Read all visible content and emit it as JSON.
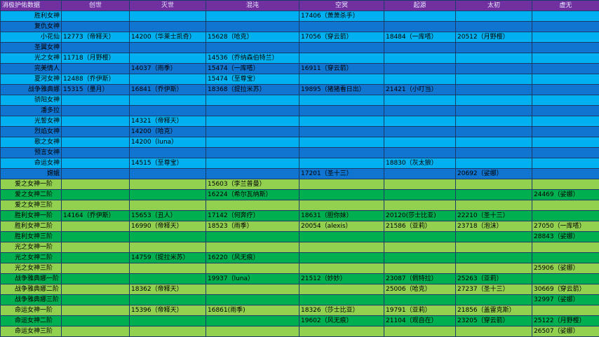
{
  "headers": [
    "消极护佑数据",
    "创世",
    "灭世",
    "混沌",
    "空冥",
    "起源",
    "太初",
    "虚无"
  ],
  "rows": [
    {
      "style": "cyan",
      "align": "right",
      "cells": [
        "胜利女神",
        "",
        "",
        "",
        "17406（萧萧杀手）",
        "",
        "",
        ""
      ]
    },
    {
      "style": "blue",
      "align": "right",
      "cells": [
        "复仇女神",
        "",
        "",
        "",
        "",
        "",
        "",
        ""
      ]
    },
    {
      "style": "cyan",
      "align": "right",
      "cells": [
        "小花仙",
        "12773（帝释天）",
        "14200（华莱士凯奇）",
        "15628（哈克）",
        "17056（穿云箭）",
        "18484（一库嗒）",
        "20512（月野樱）",
        ""
      ]
    },
    {
      "style": "blue",
      "align": "right",
      "cells": [
        "圣翼女神",
        "",
        "",
        "",
        "",
        "",
        "",
        ""
      ]
    },
    {
      "style": "cyan",
      "align": "right",
      "cells": [
        "光之女神",
        "11718（月野樱）",
        "",
        "14536（乔纳森伯特兰）",
        "",
        "",
        "",
        ""
      ]
    },
    {
      "style": "blue",
      "align": "right",
      "cells": [
        "完美情人",
        "",
        "14037（雨季）",
        "15474（一库嗒）",
        "16911（穿云箭）",
        "",
        "",
        ""
      ]
    },
    {
      "style": "cyan",
      "align": "right",
      "cells": [
        "夏河女神",
        "12488（乔伊斯）",
        "",
        "15474（至尊宝）",
        "",
        "",
        "",
        ""
      ]
    },
    {
      "style": "blue",
      "align": "right",
      "cells": [
        "战争雅典娜",
        "15315（墨月）",
        "16841（乔伊斯）",
        "18368（提拉米苏）",
        "19895（猪猪看日出）",
        "21421（小叮当）",
        "",
        ""
      ]
    },
    {
      "style": "cyan",
      "align": "right",
      "cells": [
        "骄阳女神",
        "",
        "",
        "",
        "",
        "",
        "",
        ""
      ]
    },
    {
      "style": "blue",
      "align": "right",
      "cells": [
        "潘多拉",
        "",
        "",
        "",
        "",
        "",
        "",
        ""
      ]
    },
    {
      "style": "cyan",
      "align": "right",
      "cells": [
        "光誓女神",
        "",
        "14321（帝释天）",
        "",
        "",
        "",
        "",
        ""
      ]
    },
    {
      "style": "blue",
      "align": "right",
      "cells": [
        "烈焰女神",
        "",
        "14200（哈克）",
        "",
        "",
        "",
        "",
        ""
      ]
    },
    {
      "style": "cyan",
      "align": "right",
      "cells": [
        "歌之女神",
        "",
        "14200（luna）",
        "",
        "",
        "",
        "",
        ""
      ]
    },
    {
      "style": "blue",
      "align": "right",
      "cells": [
        "预言女神",
        "",
        "",
        "",
        "",
        "",
        "",
        ""
      ]
    },
    {
      "style": "cyan",
      "align": "right",
      "cells": [
        "命运女神",
        "",
        "14515（至尊宝）",
        "",
        "",
        "18830（灰太狼）",
        "",
        ""
      ]
    },
    {
      "style": "blue",
      "align": "right",
      "cells": [
        "嫦娥",
        "",
        "",
        "",
        "17201（圣十三）",
        "",
        "20692（娑娜）",
        ""
      ]
    },
    {
      "style": "lime",
      "align": "left",
      "cells": [
        "爱之女神一阶",
        "",
        "",
        "15603（李兰普曼）",
        "",
        "",
        "",
        ""
      ]
    },
    {
      "style": "green",
      "align": "left",
      "cells": [
        "爱之女神二阶",
        "",
        "",
        "16224（希尔瓦纳斯）",
        "",
        "",
        "",
        "24469（娑娜）"
      ]
    },
    {
      "style": "lime",
      "align": "left",
      "cells": [
        "爱之女神三阶",
        "",
        "",
        "",
        "",
        "",
        "",
        ""
      ]
    },
    {
      "style": "green",
      "align": "left",
      "cells": [
        "胜利女神一阶",
        "14164（乔伊斯）",
        "15653（丑人）",
        "17142（何奔疗）",
        "18631（胆你妹）",
        "20120(莎士比亚)",
        "22210（圣十三）",
        ""
      ]
    },
    {
      "style": "lime",
      "align": "left",
      "cells": [
        "胜利女神二阶",
        "",
        "16990（帝释天）",
        "18523（雨季）",
        "20054（alexis）",
        "21586（亚莉）",
        "23718（泡沫）",
        "27050（一库嗒）"
      ]
    },
    {
      "style": "green",
      "align": "left",
      "cells": [
        "胜利女神三阶",
        "",
        "",
        "",
        "",
        "",
        "",
        "28843（娑娜）"
      ]
    },
    {
      "style": "lime",
      "align": "left",
      "cells": [
        "光之女神一阶",
        "",
        "",
        "",
        "",
        "",
        "",
        ""
      ]
    },
    {
      "style": "green",
      "align": "left",
      "cells": [
        "光之女神二阶",
        "",
        "14759（提拉米苏）",
        "16220（风无痕）",
        "",
        "",
        "",
        ""
      ]
    },
    {
      "style": "lime",
      "align": "left",
      "cells": [
        "光之女神三阶",
        "",
        "",
        "",
        "",
        "",
        "",
        "25906（娑娜）"
      ]
    },
    {
      "style": "green",
      "align": "left",
      "cells": [
        "战争雅典娜一阶",
        "",
        "",
        "19937（luna）",
        "21512（妙妙）",
        "23087（佩特拉）",
        "25263（亚莉）",
        ""
      ]
    },
    {
      "style": "lime",
      "align": "left",
      "cells": [
        "战争雅典娜二阶",
        "",
        "18362（帝释天）",
        "",
        "",
        "25006（哈克）",
        "27237（圣十三）",
        "30669（穿云箭）"
      ]
    },
    {
      "style": "green",
      "align": "left",
      "cells": [
        "战争雅典娜三阶",
        "",
        "",
        "",
        "",
        "",
        "",
        "32997（娑娜）"
      ]
    },
    {
      "style": "lime",
      "align": "left",
      "cells": [
        "命运女神一阶",
        "",
        "15396（帝释天）",
        "16861(雨季)",
        "18326（莎士比亚）",
        "19791（亚莉）",
        "21856（盖雷克斯）",
        ""
      ]
    },
    {
      "style": "green",
      "align": "left",
      "cells": [
        "命运女神二阶",
        "",
        "",
        "",
        "19602（风无痕）",
        "21104（观自在）",
        "23205（穿云箭）",
        "25122（月野樱）"
      ]
    },
    {
      "style": "lime",
      "align": "left",
      "cells": [
        "命运女神三阶",
        "",
        "",
        "",
        "",
        "",
        "",
        "26507（娑娜）"
      ]
    }
  ]
}
